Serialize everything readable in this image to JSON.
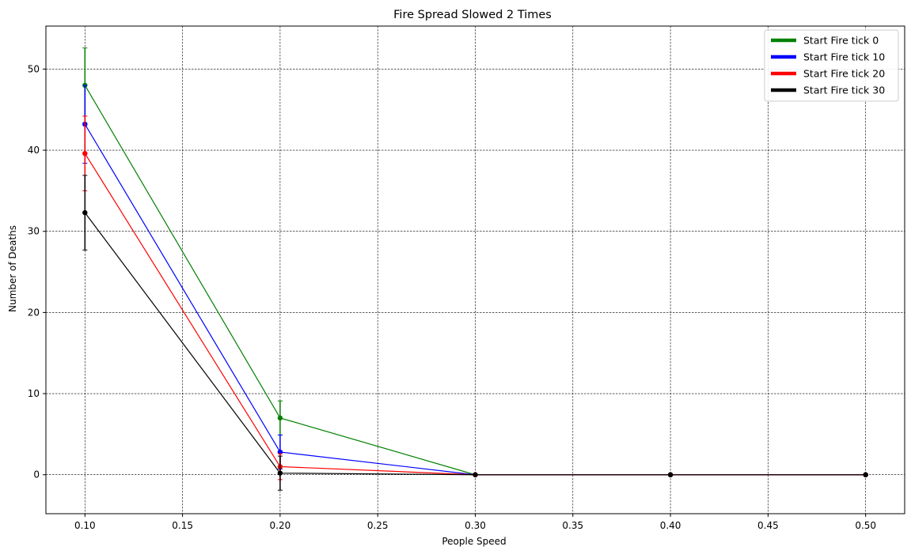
{
  "chart_data": {
    "type": "line",
    "title": "Fire Spread Slowed 2 Times",
    "xlabel": "People Speed",
    "ylabel": "Number of Deaths",
    "x": [
      0.1,
      0.2,
      0.3,
      0.4,
      0.5
    ],
    "xlim": [
      0.08,
      0.52
    ],
    "ylim": [
      -4.8,
      55.3
    ],
    "xticks": [
      "0.10",
      "0.15",
      "0.20",
      "0.25",
      "0.30",
      "0.35",
      "0.40",
      "0.45",
      "0.50"
    ],
    "yticks": [
      "0",
      "10",
      "20",
      "30",
      "40",
      "50"
    ],
    "grid": true,
    "legend_position": "top-right",
    "series": [
      {
        "name": "Start Fire tick 0",
        "color": "#008000",
        "values": [
          48.0,
          7.0,
          0,
          0,
          0
        ],
        "errors": [
          4.6,
          2.1,
          0,
          0,
          0
        ]
      },
      {
        "name": "Start Fire tick 10",
        "color": "#0000ff",
        "values": [
          43.2,
          2.8,
          0,
          0,
          0
        ],
        "errors": [
          4.8,
          2.1,
          0,
          0,
          0
        ]
      },
      {
        "name": "Start Fire tick 20",
        "color": "#ff0000",
        "values": [
          39.6,
          1.0,
          0,
          0,
          0
        ],
        "errors": [
          4.6,
          1.6,
          0,
          0,
          0
        ]
      },
      {
        "name": "Start Fire tick 30",
        "color": "#000000",
        "values": [
          32.3,
          0.2,
          0,
          0,
          0
        ],
        "errors": [
          4.6,
          2.1,
          0,
          0,
          0
        ]
      }
    ]
  }
}
